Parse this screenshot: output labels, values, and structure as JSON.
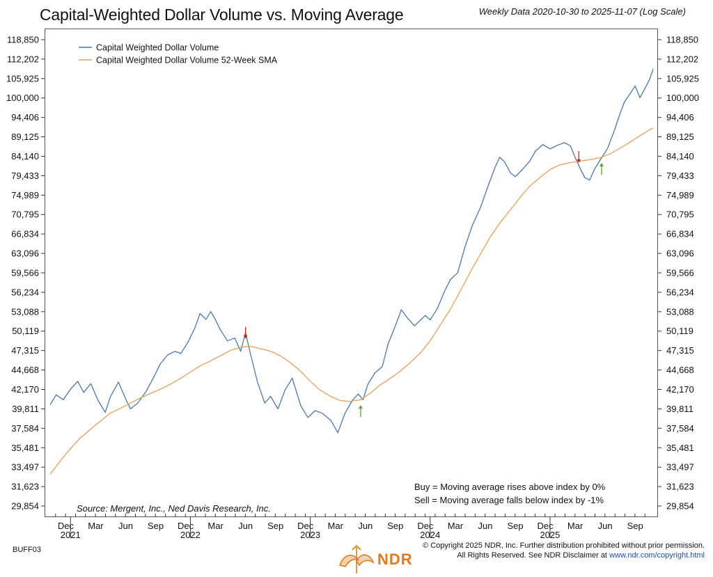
{
  "header": {
    "title": "Capital-Weighted Dollar Volume vs. Moving Average",
    "subtitle": "Weekly Data 2020-10-30 to 2025-11-07 (Log Scale)"
  },
  "footer": {
    "code": "BUFF03",
    "copyright_line1": "© Copyright 2025 NDR, Inc. Further distribution prohibited without prior permission.",
    "copyright_line2_prefix": "All Rights Reserved. See NDR Disclaimer at ",
    "copyright_link": "www.ndr.com/copyright.html",
    "logo_text": "NDR"
  },
  "colors": {
    "index_line": "#4a77a8",
    "sma_line": "#e3a05a",
    "buy_arrow": "#5aa02c",
    "sell_arrow": "#d0201e",
    "brand": "#e07a1a"
  },
  "chart_data": {
    "type": "line",
    "title": "Capital-Weighted Dollar Volume vs. Moving Average",
    "scale": "log",
    "ylim": [
      29000,
      121500
    ],
    "y_ticks": [
      "118,850",
      "112,202",
      "105,925",
      "100,000",
      "94,406",
      "89,125",
      "84,140",
      "79,433",
      "74,989",
      "70,795",
      "66,834",
      "63,096",
      "59,566",
      "56,234",
      "53,088",
      "50,119",
      "47,315",
      "44,668",
      "42,170",
      "39,811",
      "37,584",
      "35,481",
      "33,497",
      "31,623",
      "29,854"
    ],
    "y_tick_values": [
      118850,
      112202,
      105925,
      100000,
      94406,
      89125,
      84140,
      79433,
      74989,
      70795,
      66834,
      63096,
      59566,
      56234,
      53088,
      50119,
      47315,
      44668,
      42170,
      39811,
      37584,
      35481,
      33497,
      31623,
      29854
    ],
    "x_range": [
      2020.83,
      2025.86
    ],
    "x_months": [
      {
        "label": "Dec",
        "t": 2020.96
      },
      {
        "label": "Mar",
        "t": 2021.21
      },
      {
        "label": "Jun",
        "t": 2021.46
      },
      {
        "label": "Sep",
        "t": 2021.71
      },
      {
        "label": "Dec",
        "t": 2021.96
      },
      {
        "label": "Mar",
        "t": 2022.21
      },
      {
        "label": "Jun",
        "t": 2022.46
      },
      {
        "label": "Sep",
        "t": 2022.71
      },
      {
        "label": "Dec",
        "t": 2022.96
      },
      {
        "label": "Mar",
        "t": 2023.21
      },
      {
        "label": "Jun",
        "t": 2023.46
      },
      {
        "label": "Sep",
        "t": 2023.71
      },
      {
        "label": "Dec",
        "t": 2023.96
      },
      {
        "label": "Mar",
        "t": 2024.21
      },
      {
        "label": "Jun",
        "t": 2024.46
      },
      {
        "label": "Sep",
        "t": 2024.71
      },
      {
        "label": "Dec",
        "t": 2024.96
      },
      {
        "label": "Mar",
        "t": 2025.21
      },
      {
        "label": "Jun",
        "t": 2025.46
      },
      {
        "label": "Sep",
        "t": 2025.71
      }
    ],
    "x_years": [
      {
        "label": "2021",
        "t": 2021.0
      },
      {
        "label": "2022",
        "t": 2022.0
      },
      {
        "label": "2023",
        "t": 2023.0
      },
      {
        "label": "2024",
        "t": 2024.0
      },
      {
        "label": "2025",
        "t": 2025.0
      }
    ],
    "series": [
      {
        "name": "Capital Weighted Dollar Volume",
        "points": [
          [
            2020.83,
            40300
          ],
          [
            2020.88,
            41500
          ],
          [
            2020.94,
            40900
          ],
          [
            2021.0,
            42200
          ],
          [
            2021.06,
            43200
          ],
          [
            2021.11,
            41800
          ],
          [
            2021.17,
            42900
          ],
          [
            2021.23,
            40800
          ],
          [
            2021.29,
            39400
          ],
          [
            2021.33,
            41200
          ],
          [
            2021.4,
            43100
          ],
          [
            2021.46,
            41000
          ],
          [
            2021.5,
            39800
          ],
          [
            2021.56,
            40500
          ],
          [
            2021.63,
            41900
          ],
          [
            2021.69,
            43600
          ],
          [
            2021.75,
            45500
          ],
          [
            2021.81,
            46700
          ],
          [
            2021.87,
            47200
          ],
          [
            2021.92,
            46900
          ],
          [
            2021.98,
            48500
          ],
          [
            2022.04,
            50700
          ],
          [
            2022.08,
            52800
          ],
          [
            2022.13,
            51900
          ],
          [
            2022.17,
            53100
          ],
          [
            2022.21,
            51800
          ],
          [
            2022.25,
            50300
          ],
          [
            2022.31,
            48700
          ],
          [
            2022.37,
            49100
          ],
          [
            2022.42,
            47200
          ],
          [
            2022.46,
            49900
          ],
          [
            2022.5,
            46900
          ],
          [
            2022.56,
            43100
          ],
          [
            2022.62,
            40500
          ],
          [
            2022.67,
            41300
          ],
          [
            2022.73,
            39800
          ],
          [
            2022.79,
            42100
          ],
          [
            2022.85,
            43600
          ],
          [
            2022.92,
            40200
          ],
          [
            2022.98,
            38800
          ],
          [
            2023.04,
            39600
          ],
          [
            2023.1,
            39300
          ],
          [
            2023.17,
            38500
          ],
          [
            2023.23,
            37100
          ],
          [
            2023.29,
            39300
          ],
          [
            2023.35,
            40800
          ],
          [
            2023.4,
            41600
          ],
          [
            2023.44,
            40900
          ],
          [
            2023.48,
            42800
          ],
          [
            2023.54,
            44300
          ],
          [
            2023.6,
            45100
          ],
          [
            2023.65,
            48300
          ],
          [
            2023.71,
            50900
          ],
          [
            2023.76,
            53400
          ],
          [
            2023.81,
            52100
          ],
          [
            2023.87,
            50900
          ],
          [
            2023.92,
            51800
          ],
          [
            2023.96,
            52500
          ],
          [
            2024.0,
            51800
          ],
          [
            2024.06,
            53600
          ],
          [
            2024.12,
            56400
          ],
          [
            2024.17,
            58400
          ],
          [
            2024.23,
            59600
          ],
          [
            2024.29,
            64300
          ],
          [
            2024.35,
            68400
          ],
          [
            2024.42,
            72300
          ],
          [
            2024.48,
            76800
          ],
          [
            2024.54,
            81300
          ],
          [
            2024.58,
            83900
          ],
          [
            2024.62,
            82800
          ],
          [
            2024.67,
            80100
          ],
          [
            2024.71,
            79200
          ],
          [
            2024.77,
            80900
          ],
          [
            2024.83,
            82900
          ],
          [
            2024.88,
            85500
          ],
          [
            2024.94,
            87100
          ],
          [
            2025.0,
            86000
          ],
          [
            2025.06,
            86900
          ],
          [
            2025.12,
            87600
          ],
          [
            2025.17,
            86800
          ],
          [
            2025.21,
            83800
          ],
          [
            2025.25,
            81200
          ],
          [
            2025.29,
            79000
          ],
          [
            2025.33,
            78400
          ],
          [
            2025.37,
            80900
          ],
          [
            2025.42,
            83300
          ],
          [
            2025.48,
            86100
          ],
          [
            2025.54,
            91100
          ],
          [
            2025.58,
            95100
          ],
          [
            2025.62,
            98800
          ],
          [
            2025.67,
            101400
          ],
          [
            2025.71,
            103600
          ],
          [
            2025.75,
            100100
          ],
          [
            2025.79,
            102700
          ],
          [
            2025.83,
            105600
          ],
          [
            2025.86,
            108900
          ]
        ]
      },
      {
        "name": "Capital Weighted Dollar Volume 52-Week SMA",
        "points": [
          [
            2020.83,
            32800
          ],
          [
            2020.92,
            34200
          ],
          [
            2021.0,
            35400
          ],
          [
            2021.08,
            36500
          ],
          [
            2021.17,
            37500
          ],
          [
            2021.25,
            38400
          ],
          [
            2021.33,
            39300
          ],
          [
            2021.42,
            39900
          ],
          [
            2021.5,
            40500
          ],
          [
            2021.58,
            41100
          ],
          [
            2021.67,
            41700
          ],
          [
            2021.75,
            42200
          ],
          [
            2021.83,
            42800
          ],
          [
            2021.92,
            43600
          ],
          [
            2022.0,
            44400
          ],
          [
            2022.08,
            45200
          ],
          [
            2022.17,
            45900
          ],
          [
            2022.25,
            46600
          ],
          [
            2022.33,
            47300
          ],
          [
            2022.42,
            47800
          ],
          [
            2022.5,
            47900
          ],
          [
            2022.58,
            47600
          ],
          [
            2022.67,
            47200
          ],
          [
            2022.75,
            46600
          ],
          [
            2022.83,
            45700
          ],
          [
            2022.92,
            44500
          ],
          [
            2023.0,
            43200
          ],
          [
            2023.08,
            42100
          ],
          [
            2023.17,
            41300
          ],
          [
            2023.25,
            40800
          ],
          [
            2023.33,
            40700
          ],
          [
            2023.42,
            40900
          ],
          [
            2023.5,
            41700
          ],
          [
            2023.58,
            42700
          ],
          [
            2023.67,
            43600
          ],
          [
            2023.75,
            44500
          ],
          [
            2023.83,
            45600
          ],
          [
            2023.92,
            47000
          ],
          [
            2024.0,
            48700
          ],
          [
            2024.08,
            50900
          ],
          [
            2024.17,
            53500
          ],
          [
            2024.25,
            56400
          ],
          [
            2024.33,
            59500
          ],
          [
            2024.42,
            63000
          ],
          [
            2024.5,
            66200
          ],
          [
            2024.58,
            69000
          ],
          [
            2024.67,
            71800
          ],
          [
            2024.75,
            74500
          ],
          [
            2024.83,
            77000
          ],
          [
            2024.92,
            79100
          ],
          [
            2025.0,
            80900
          ],
          [
            2025.08,
            82000
          ],
          [
            2025.17,
            82600
          ],
          [
            2025.25,
            82900
          ],
          [
            2025.33,
            83300
          ],
          [
            2025.42,
            83800
          ],
          [
            2025.5,
            84700
          ],
          [
            2025.58,
            86100
          ],
          [
            2025.67,
            87800
          ],
          [
            2025.75,
            89400
          ],
          [
            2025.83,
            91000
          ],
          [
            2025.86,
            91500
          ]
        ]
      }
    ],
    "signals": [
      {
        "type": "sell",
        "t": 2022.46,
        "value": 48700
      },
      {
        "type": "buy",
        "t": 2023.42,
        "value": 40500
      },
      {
        "type": "sell",
        "t": 2025.24,
        "value": 82000
      },
      {
        "type": "buy",
        "t": 2025.43,
        "value": 83000
      }
    ],
    "legend": [
      "Capital Weighted Dollar Volume",
      "Capital Weighted Dollar Volume 52-Week SMA"
    ],
    "annotations": {
      "buy": "Buy = Moving average rises above index by 0%",
      "sell": "Sell = Moving average falls below index by -1%",
      "source": "Source:   Mergent, Inc., Ned Davis Research, Inc."
    }
  }
}
